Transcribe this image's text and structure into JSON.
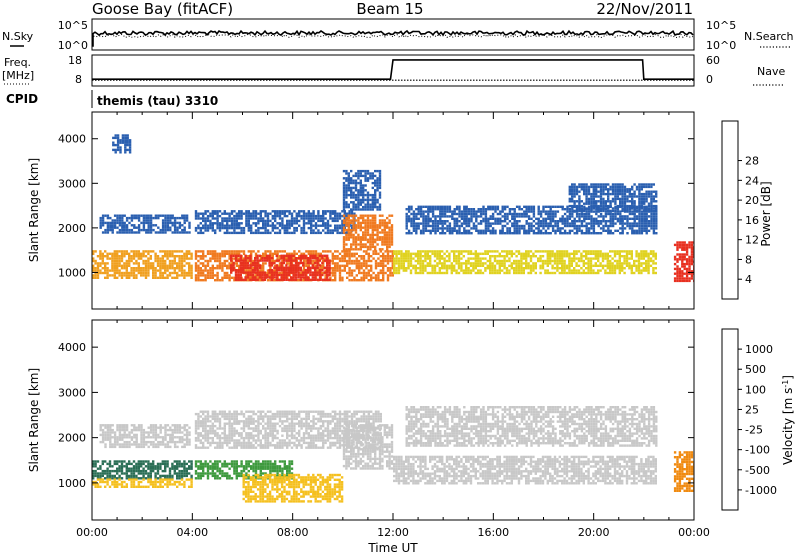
{
  "header": {
    "station": "Goose Bay (fitACF)",
    "beam": "Beam 15",
    "date": "22/Nov/2011"
  },
  "noise_panel": {
    "left_label": "N.Sky",
    "right_label": "N.Search",
    "left_ticks": [
      "10^5",
      "10^0"
    ],
    "right_ticks": [
      "10^5",
      "10^0"
    ]
  },
  "freq_panel": {
    "left_label": "Freq.",
    "left_unit": "[MHz]",
    "right_label": "Nave",
    "left_ticks": [
      "18",
      "8"
    ],
    "right_ticks": [
      "60",
      "0"
    ]
  },
  "cpid": {
    "label": "CPID",
    "value": "themis (tau) 3310"
  },
  "chart_data": [
    {
      "type": "line",
      "name": "noise",
      "series": [
        {
          "name": "N.Sky",
          "style": "solid"
        },
        {
          "name": "N.Search",
          "style": "dotted"
        }
      ],
      "x_ticks_hours": [
        0,
        4,
        8,
        12,
        16,
        20,
        24
      ]
    },
    {
      "type": "line",
      "name": "frequency-nave",
      "series": [
        {
          "name": "Freq. [MHz]",
          "style": "dotted",
          "x": [
            0,
            24
          ],
          "y": [
            10,
            10
          ]
        },
        {
          "name": "Nave",
          "style": "solid",
          "x": [
            0,
            0.01,
            11.9,
            12,
            21.95,
            22,
            24
          ],
          "y": [
            12,
            12,
            12,
            52,
            52,
            12,
            12
          ]
        }
      ]
    },
    {
      "type": "heatmap",
      "name": "power",
      "ylabel": "Slant Range [km]",
      "ylim": [
        180,
        4600
      ],
      "y_ticks": [
        1000,
        2000,
        3000,
        4000
      ],
      "colorbar": {
        "label": "Power [dB]",
        "ticks": [
          "4",
          "8",
          "12",
          "16",
          "20",
          "24",
          "28"
        ],
        "colors": [
          "#1a1aff",
          "#2a5fb0",
          "#2f7f64",
          "#4aa34a",
          "#e0d220",
          "#f0a020",
          "#f07a20",
          "#e83020",
          "#d40000"
        ]
      },
      "bands": [
        {
          "x": [
            0,
            4
          ],
          "y": [
            900,
            1500
          ],
          "color": "#f0a020"
        },
        {
          "x": [
            0.3,
            3.9
          ],
          "y": [
            1900,
            2300
          ],
          "color": "#2a5fb0"
        },
        {
          "x": [
            0.8,
            1.5
          ],
          "y": [
            3700,
            4100
          ],
          "color": "#2a5fb0"
        },
        {
          "x": [
            4.1,
            12
          ],
          "y": [
            800,
            1500
          ],
          "color": "#f07a20"
        },
        {
          "x": [
            5.5,
            9.5
          ],
          "y": [
            850,
            1400
          ],
          "color": "#e83020"
        },
        {
          "x": [
            4.1,
            10.5
          ],
          "y": [
            1900,
            2400
          ],
          "color": "#2a5fb0"
        },
        {
          "x": [
            10,
            12
          ],
          "y": [
            1500,
            2300
          ],
          "color": "#f07a20"
        },
        {
          "x": [
            10,
            11.5
          ],
          "y": [
            2400,
            3300
          ],
          "color": "#2a5fb0"
        },
        {
          "x": [
            12,
            22.5
          ],
          "y": [
            1000,
            1500
          ],
          "color": "#e0d220"
        },
        {
          "x": [
            12.5,
            22.5
          ],
          "y": [
            1900,
            2500
          ],
          "color": "#2a5fb0"
        },
        {
          "x": [
            19,
            22.5
          ],
          "y": [
            2400,
            3000
          ],
          "color": "#2a5fb0"
        },
        {
          "x": [
            23.2,
            24
          ],
          "y": [
            800,
            1700
          ],
          "color": "#e83020"
        }
      ]
    },
    {
      "type": "heatmap",
      "name": "velocity",
      "xlabel": "Time UT",
      "ylabel": "Slant Range [km]",
      "ylim": [
        180,
        4600
      ],
      "x_ticks": [
        "00:00",
        "04:00",
        "08:00",
        "12:00",
        "16:00",
        "20:00",
        "00:00"
      ],
      "y_ticks": [
        1000,
        2000,
        3000,
        4000
      ],
      "colorbar": {
        "label": "Velocity [m s^-1]",
        "ticks": [
          "1000",
          "500",
          "100",
          "25",
          "-25",
          "-100",
          "-500",
          "-1000"
        ],
        "colors": [
          "#1a3fb0",
          "#2a6e55",
          "#3e9a3e",
          "#7ad040",
          "#c8c8c8",
          "#f5c020",
          "#f08a10",
          "#f04a10",
          "#e00000"
        ]
      },
      "bands": [
        {
          "x": [
            0,
            4
          ],
          "y": [
            1100,
            1500
          ],
          "color": "#2a6e55"
        },
        {
          "x": [
            0,
            4
          ],
          "y": [
            900,
            1100
          ],
          "color": "#f5c020"
        },
        {
          "x": [
            0.3,
            3.9
          ],
          "y": [
            1800,
            2300
          ],
          "color": "#c8c8c8"
        },
        {
          "x": [
            4.1,
            8
          ],
          "y": [
            1100,
            1500
          ],
          "color": "#3e9a3e"
        },
        {
          "x": [
            6,
            10
          ],
          "y": [
            600,
            1200
          ],
          "color": "#f5c020"
        },
        {
          "x": [
            4.1,
            11.5
          ],
          "y": [
            1800,
            2600
          ],
          "color": "#c8c8c8"
        },
        {
          "x": [
            10,
            12
          ],
          "y": [
            1300,
            2300
          ],
          "color": "#c8c8c8"
        },
        {
          "x": [
            12,
            22.5
          ],
          "y": [
            1000,
            1600
          ],
          "color": "#c8c8c8"
        },
        {
          "x": [
            12.5,
            22.5
          ],
          "y": [
            1800,
            2700
          ],
          "color": "#c8c8c8"
        },
        {
          "x": [
            23.2,
            24
          ],
          "y": [
            800,
            1700
          ],
          "color": "#f08a10"
        }
      ]
    }
  ]
}
